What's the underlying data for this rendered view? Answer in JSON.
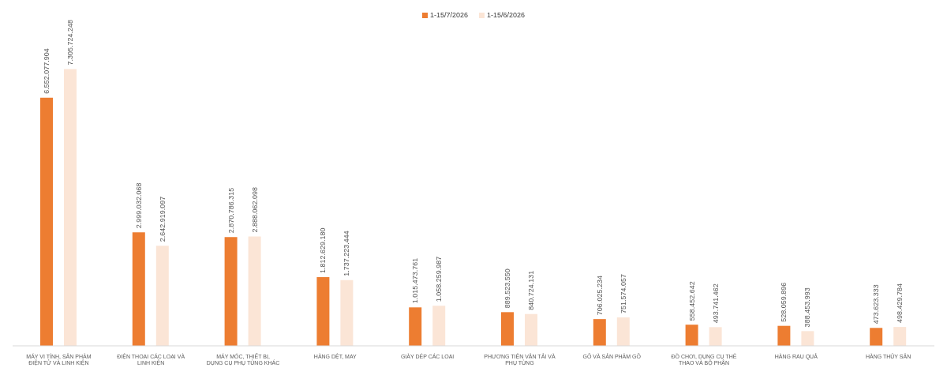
{
  "chart_data": {
    "type": "bar",
    "categories": [
      "MÁY VI TÍNH, SẢN PHẨM ĐIỆN TỬ VÀ LINH KIỆN",
      "ĐIỆN THOẠI CÁC LOẠI VÀ LINH KIỆN",
      "MÁY MÓC, THIẾT BỊ, DỤNG CỤ PHỤ TÙNG KHÁC",
      "HÀNG DỆT, MAY",
      "GIÀY DÉP CÁC LOẠI",
      "PHƯƠNG TIỆN VẬN TẢI VÀ PHỤ TÙNG",
      "GỖ VÀ SẢN PHẨM GỖ",
      "ĐỒ CHƠI, DỤNG CỤ THỂ THAO VÀ BỘ PHẬN",
      "HÀNG RAU QUẢ",
      "HÀNG THỦY SẢN"
    ],
    "series": [
      {
        "name": "1-15/7/2026",
        "color": "#ed7d31",
        "values": [
          6552077904,
          2999032068,
          2870786315,
          1812629180,
          1015473761,
          889523550,
          706025234,
          558452642,
          528059896,
          473623333
        ],
        "value_labels": [
          "6.552.077.904",
          "2.999.032.068",
          "2.870.786.315",
          "1.812.629.180",
          "1.015.473.761",
          "889.523.550",
          "706.025.234",
          "558.452.642",
          "528.059.896",
          "473.623.333"
        ]
      },
      {
        "name": "1-15/6/2026",
        "color": "#fbe5d6",
        "values": [
          7305724248,
          2642919097,
          2888062098,
          1737223444,
          1058259987,
          840724131,
          751574057,
          493741462,
          388453993,
          498429784
        ],
        "value_labels": [
          "7.305.724.248",
          "2.642.919.097",
          "2.888.062.098",
          "1.737.223.444",
          "1.058.259.987",
          "840.724.131",
          "751.574.057",
          "493.741.462",
          "388.453.993",
          "498.429.784"
        ]
      }
    ],
    "legend": "top",
    "grid": false
  }
}
